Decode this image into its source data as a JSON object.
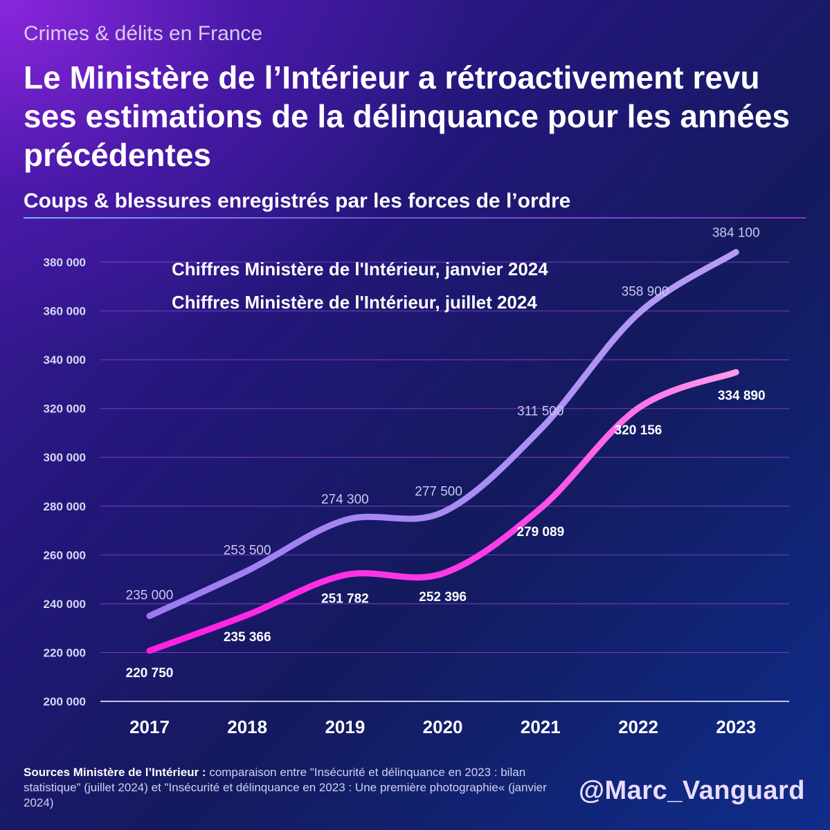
{
  "header": {
    "supertitle": "Crimes & délits en France",
    "title": "Le Ministère de l’Intérieur a rétroactivement revu ses estimations de la délinquance pour les années précédentes",
    "subtitle": "Coups & blessures enregistrés par les forces de l’ordre"
  },
  "chart_data": {
    "type": "line",
    "title": "Le Ministère de l’Intérieur a rétroactivement revu ses estimations de la délinquance pour les années précédentes",
    "subtitle": "Coups & blessures enregistrés par les forces de l’ordre",
    "categories": [
      "2017",
      "2018",
      "2019",
      "2020",
      "2021",
      "2022",
      "2023"
    ],
    "ylim": [
      200000,
      380000
    ],
    "yticks": [
      200000,
      220000,
      240000,
      260000,
      280000,
      300000,
      320000,
      340000,
      360000,
      380000
    ],
    "ytick_labels": [
      "200 000",
      "220 000",
      "240 000",
      "260 000",
      "280 000",
      "300 000",
      "320 000",
      "340 000",
      "360 000",
      "380 000"
    ],
    "grid": true,
    "legend_position": "top-left",
    "series": [
      {
        "name": "Chiffres Ministère de l'Intérieur, janvier 2024",
        "color": "#a487f2",
        "values": [
          235000,
          253500,
          274300,
          277500,
          311500,
          358900,
          384100
        ],
        "labels": [
          "235 000",
          "253 500",
          "274 300",
          "277 500",
          "311 500",
          "358 900",
          "384 100"
        ]
      },
      {
        "name": "Chiffres Ministère de l'Intérieur, juillet 2024",
        "color": "#ff2fe6",
        "values": [
          220750,
          235366,
          251782,
          252396,
          279089,
          320156,
          334890
        ],
        "labels": [
          "220 750",
          "235 366",
          "251 782",
          "252 396",
          "279 089",
          "320 156",
          "334 890"
        ]
      }
    ]
  },
  "footer": {
    "source_label": "Sources Ministère de l’Intérieur :",
    "source_text": "comparaison entre \"Insécurité et délinquance en 2023 : bilan statistique\" (juillet 2024) et \"Insécurité et délinquance en 2023 : Une première photographie« (janvier 2024)",
    "handle": "@Marc_Vanguard"
  },
  "colors": {
    "background_top": "#7a22d6",
    "background_bottom": "#0f2d8a",
    "grid_line": "#8e3fd0",
    "axis_line": "#ffffff"
  }
}
